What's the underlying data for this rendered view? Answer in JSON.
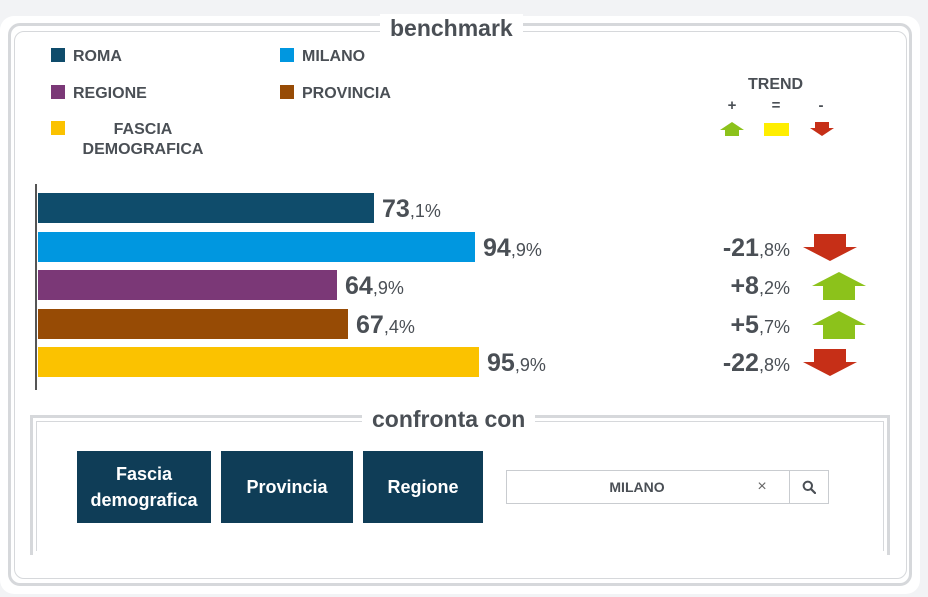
{
  "title": "benchmark",
  "legend": [
    {
      "label": "ROMA",
      "color": "#0f4c6b"
    },
    {
      "label": "MILANO",
      "color": "#0097e0"
    },
    {
      "label": "REGIONE",
      "color": "#7b3877"
    },
    {
      "label": "PROVINCIA",
      "color": "#974b05"
    },
    {
      "label": "FASCIA DEMOGRAFICA",
      "label_line1": "FASCIA",
      "label_line2": "DEMOGRAFICA",
      "color": "#fbc200"
    }
  ],
  "trend_legend": {
    "title": "TREND",
    "items": [
      {
        "symbol": "+",
        "icon": "up-arrow-icon",
        "color": "#8cc21b"
      },
      {
        "symbol": "=",
        "icon": "equal-bar-icon",
        "color": "#ffee00"
      },
      {
        "symbol": "-",
        "icon": "down-arrow-icon",
        "color": "#c62f17"
      }
    ]
  },
  "chart_data": {
    "type": "bar",
    "orientation": "horizontal",
    "categories": [
      "ROMA",
      "MILANO",
      "REGIONE",
      "PROVINCIA",
      "FASCIA DEMOGRAFICA"
    ],
    "values": [
      73.1,
      94.9,
      64.9,
      67.4,
      95.9
    ],
    "unit": "%",
    "data_labels": [
      {
        "int": "73",
        "dec": ",1%"
      },
      {
        "int": "94",
        "dec": ",9%"
      },
      {
        "int": "64",
        "dec": ",9%"
      },
      {
        "int": "67",
        "dec": ",4%"
      },
      {
        "int": "95",
        "dec": ",9%"
      }
    ],
    "colors": [
      "#0f4c6b",
      "#0097e0",
      "#7b3877",
      "#974b05",
      "#fbc200"
    ],
    "xlim": [
      0,
      100
    ],
    "grid": false,
    "trends": [
      null,
      {
        "value": -21.8,
        "int": "-21",
        "dec": ",8%",
        "direction": "down"
      },
      {
        "value": 8.2,
        "int": "+8",
        "dec": ",2%",
        "direction": "up"
      },
      {
        "value": 5.7,
        "int": "+5",
        "dec": ",7%",
        "direction": "up"
      },
      {
        "value": -22.8,
        "int": "-22",
        "dec": ",8%",
        "direction": "down"
      }
    ]
  },
  "compare": {
    "title": "confronta con",
    "buttons": [
      {
        "label_line1": "Fascia",
        "label_line2": "demografica"
      },
      {
        "label": "Provincia"
      },
      {
        "label": "Regione"
      }
    ],
    "search_value": "MILANO",
    "clear_symbol": "×",
    "search_icon": "search-icon"
  }
}
